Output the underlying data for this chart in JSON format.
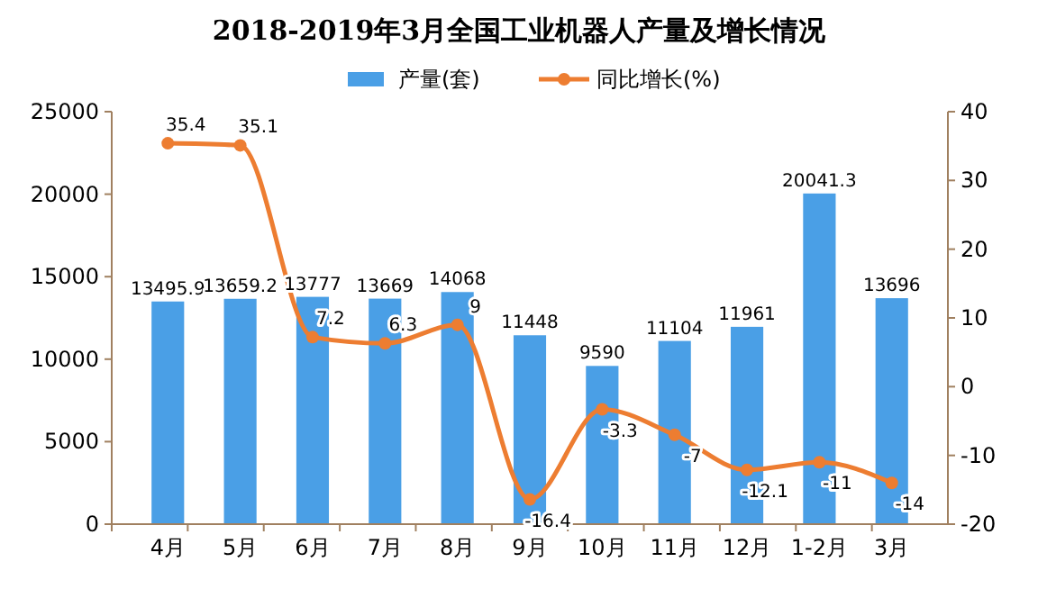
{
  "chart_data": {
    "type": "bar",
    "title": "2018-2019年3月全国工业机器人产量及增长情况",
    "categories": [
      "4月",
      "5月",
      "6月",
      "7月",
      "8月",
      "9月",
      "10月",
      "11月",
      "12月",
      "1-2月",
      "3月"
    ],
    "series": [
      {
        "name": "产量(套)",
        "color": "#4a9fe6",
        "values": [
          13495.9,
          13659.2,
          13777,
          13669,
          14068,
          11448,
          9590,
          11104,
          11961,
          20041.3,
          13696
        ]
      },
      {
        "name": "同比增长(%)",
        "type": "line",
        "axis": "y2",
        "color": "#ed7d31",
        "marker": "circle",
        "values": [
          35.4,
          35.1,
          7.2,
          6.3,
          9,
          -16.4,
          -3.3,
          -7,
          -12.1,
          -11,
          -14
        ]
      }
    ],
    "ylim": [
      0,
      25000
    ],
    "yticks": [
      0,
      5000,
      10000,
      15000,
      20000,
      25000
    ],
    "y2lim": [
      -20,
      40
    ],
    "y2ticks": [
      -20,
      -10,
      0,
      10,
      20,
      30,
      40
    ],
    "data_labels": true,
    "legend": "top",
    "grid": false
  }
}
